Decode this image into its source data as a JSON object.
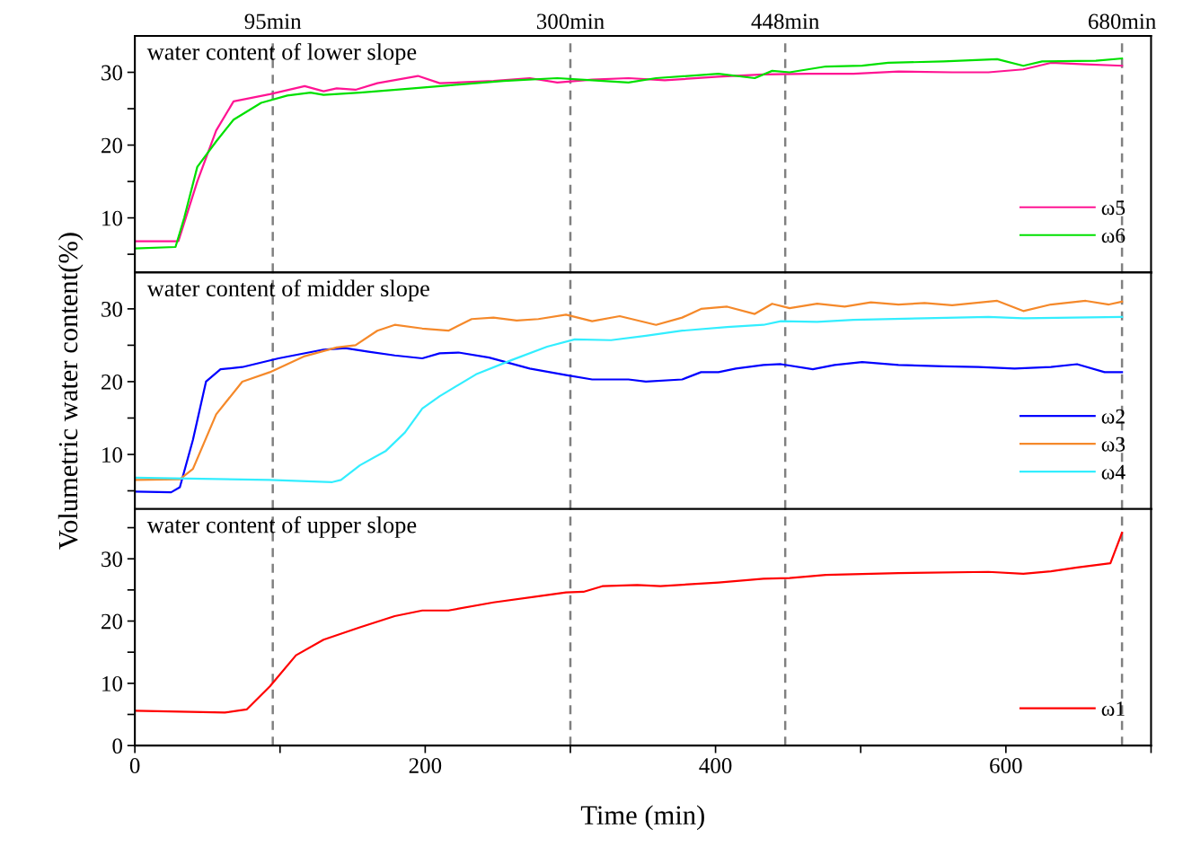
{
  "chart_data": [
    {
      "type": "line",
      "annotations": [
        "water content of lower slope"
      ],
      "xlim": [
        0,
        700
      ],
      "ylim": [
        2.5,
        35
      ],
      "yticks": [
        {
          "value": 5,
          "label": null
        },
        10,
        {
          "value": 15,
          "label": null
        },
        20,
        {
          "value": 25,
          "label": null
        },
        30
      ],
      "tick_labels": "y",
      "legend": "lower right",
      "grid": false,
      "ref_lines": [
        {
          "axis": "x",
          "value": 95,
          "label": "95min",
          "color": "#808080",
          "line_style": "dashed"
        },
        {
          "axis": "x",
          "value": 300,
          "label": "300min",
          "color": "#808080",
          "line_style": "dashed"
        },
        {
          "axis": "x",
          "value": 448,
          "label": "448min",
          "color": "#808080",
          "line_style": "dashed"
        },
        {
          "axis": "x",
          "value": 680,
          "label": "680min",
          "color": "#808080",
          "line_style": "dashed"
        }
      ],
      "series": [
        {
          "name": "ω5",
          "color": "#ff1493",
          "x": [
            0,
            30,
            43,
            56,
            68,
            93,
            117,
            130,
            139,
            152,
            167,
            195,
            210,
            247,
            272,
            291,
            315,
            340,
            365,
            402,
            433,
            464,
            495,
            526,
            563,
            588,
            612,
            631,
            655,
            680
          ],
          "values": [
            6.8,
            6.8,
            15,
            22,
            26,
            27,
            28.1,
            27.4,
            27.8,
            27.6,
            28.5,
            29.5,
            28.5,
            28.8,
            29.2,
            28.6,
            29,
            29.2,
            28.9,
            29.4,
            29.7,
            29.8,
            29.8,
            30.1,
            30,
            30,
            30.4,
            31.3,
            31.1,
            30.9
          ]
        },
        {
          "name": "ω6",
          "color": "#00e000",
          "x": [
            0,
            28,
            34,
            43,
            56,
            68,
            87,
            105,
            121,
            130,
            155,
            186,
            216,
            254,
            291,
            315,
            340,
            359,
            402,
            427,
            439,
            451,
            476,
            501,
            519,
            557,
            594,
            612,
            625,
            662,
            680
          ],
          "values": [
            5.8,
            6.0,
            10,
            17,
            20.5,
            23.5,
            25.8,
            26.8,
            27.2,
            26.9,
            27.2,
            27.7,
            28.2,
            28.8,
            29.2,
            28.9,
            28.6,
            29.2,
            29.8,
            29.2,
            30.2,
            30.0,
            30.8,
            30.9,
            31.3,
            31.5,
            31.8,
            30.9,
            31.5,
            31.6,
            31.9
          ]
        }
      ]
    },
    {
      "type": "line",
      "annotations": [
        "water content of midder slope"
      ],
      "ylabel": "Volumetric water content(%)",
      "xlim": [
        0,
        700
      ],
      "ylim": [
        2.5,
        35
      ],
      "yticks": [
        {
          "value": 5,
          "label": null
        },
        10,
        {
          "value": 15,
          "label": null
        },
        20,
        {
          "value": 25,
          "label": null
        },
        30
      ],
      "tick_labels": "y",
      "legend": "lower right",
      "grid": false,
      "ref_lines": [
        {
          "axis": "x",
          "value": 95,
          "color": "#808080",
          "line_style": "dashed"
        },
        {
          "axis": "x",
          "value": 300,
          "color": "#808080",
          "line_style": "dashed"
        },
        {
          "axis": "x",
          "value": 448,
          "color": "#808080",
          "line_style": "dashed"
        },
        {
          "axis": "x",
          "value": 680,
          "color": "#808080",
          "line_style": "dashed"
        }
      ],
      "series": [
        {
          "name": "ω2",
          "color": "#0000ff",
          "x": [
            0,
            25,
            31,
            40,
            49,
            59,
            74,
            99,
            130,
            145,
            161,
            179,
            198,
            210,
            223,
            244,
            272,
            297,
            315,
            340,
            352,
            377,
            390,
            402,
            414,
            433,
            445,
            467,
            482,
            501,
            526,
            557,
            581,
            606,
            631,
            649,
            668,
            680
          ],
          "values": [
            4.9,
            4.8,
            5.5,
            12,
            20,
            21.7,
            22,
            23.2,
            24.4,
            24.6,
            24.1,
            23.6,
            23.2,
            23.9,
            24.0,
            23.3,
            21.8,
            20.9,
            20.3,
            20.3,
            20.0,
            20.3,
            21.3,
            21.3,
            21.8,
            22.3,
            22.4,
            21.7,
            22.3,
            22.7,
            22.3,
            22.1,
            22,
            21.8,
            22.0,
            22.4,
            21.3,
            21.3
          ]
        },
        {
          "name": "ω3",
          "color": "#f5892a",
          "x": [
            0,
            31,
            40,
            56,
            74,
            93,
            117,
            139,
            152,
            167,
            179,
            198,
            216,
            232,
            247,
            263,
            278,
            297,
            315,
            334,
            359,
            377,
            390,
            408,
            427,
            439,
            451,
            470,
            489,
            507,
            526,
            544,
            563,
            594,
            612,
            631,
            655,
            671,
            680
          ],
          "values": [
            6.5,
            6.6,
            8,
            15.5,
            20,
            21.3,
            23.5,
            24.7,
            25,
            27,
            27.8,
            27.3,
            27.0,
            28.6,
            28.8,
            28.4,
            28.6,
            29.2,
            28.3,
            29.0,
            27.8,
            28.8,
            30.0,
            30.3,
            29.3,
            30.7,
            30.1,
            30.7,
            30.3,
            30.9,
            30.6,
            30.8,
            30.5,
            31.1,
            29.7,
            30.6,
            31.1,
            30.6,
            31.0
          ]
        },
        {
          "name": "ω4",
          "color": "#33eeff",
          "x": [
            0,
            93,
            136,
            142,
            155,
            173,
            186,
            198,
            210,
            235,
            260,
            284,
            303,
            328,
            352,
            377,
            408,
            433,
            445,
            470,
            495,
            544,
            588,
            612,
            680
          ],
          "values": [
            6.8,
            6.5,
            6.2,
            6.5,
            8.5,
            10.5,
            13,
            16.3,
            18,
            21,
            23.0,
            24.8,
            25.8,
            25.7,
            26.3,
            27,
            27.5,
            27.8,
            28.3,
            28.2,
            28.5,
            28.7,
            28.9,
            28.7,
            28.9
          ]
        }
      ]
    },
    {
      "type": "line",
      "annotations": [
        "water content of upper slope"
      ],
      "xlabel": "Time (min)",
      "xlim": [
        0,
        700
      ],
      "xticks": [
        0,
        {
          "value": 100,
          "label": null
        },
        200,
        {
          "value": 300,
          "label": null
        },
        400,
        {
          "value": 500,
          "label": null
        },
        600,
        {
          "value": 700,
          "label": null
        }
      ],
      "ylim": [
        0,
        38
      ],
      "yticks": [
        0,
        {
          "value": 5,
          "label": null
        },
        10,
        {
          "value": 15,
          "label": null
        },
        20,
        {
          "value": 25,
          "label": null
        },
        30,
        {
          "value": 35,
          "label": null
        }
      ],
      "legend": "lower right",
      "grid": false,
      "ref_lines": [
        {
          "axis": "x",
          "value": 95,
          "color": "#808080",
          "line_style": "dashed"
        },
        {
          "axis": "x",
          "value": 300,
          "color": "#808080",
          "line_style": "dashed"
        },
        {
          "axis": "x",
          "value": 448,
          "color": "#808080",
          "line_style": "dashed"
        },
        {
          "axis": "x",
          "value": 680,
          "color": "#808080",
          "line_style": "dashed"
        }
      ],
      "series": [
        {
          "name": "ω1",
          "color": "#ff0000",
          "x": [
            0,
            62,
            77,
            93,
            111,
            130,
            155,
            179,
            198,
            216,
            247,
            278,
            297,
            309,
            322,
            346,
            362,
            402,
            433,
            451,
            476,
            526,
            588,
            612,
            631,
            649,
            672,
            680
          ],
          "values": [
            5.6,
            5.3,
            5.8,
            9.5,
            14.5,
            17,
            19,
            20.8,
            21.7,
            21.7,
            23.0,
            24,
            24.6,
            24.7,
            25.6,
            25.8,
            25.6,
            26.2,
            26.8,
            26.9,
            27.4,
            27.7,
            27.9,
            27.6,
            28.0,
            28.6,
            29.3,
            34.2
          ]
        }
      ]
    }
  ]
}
